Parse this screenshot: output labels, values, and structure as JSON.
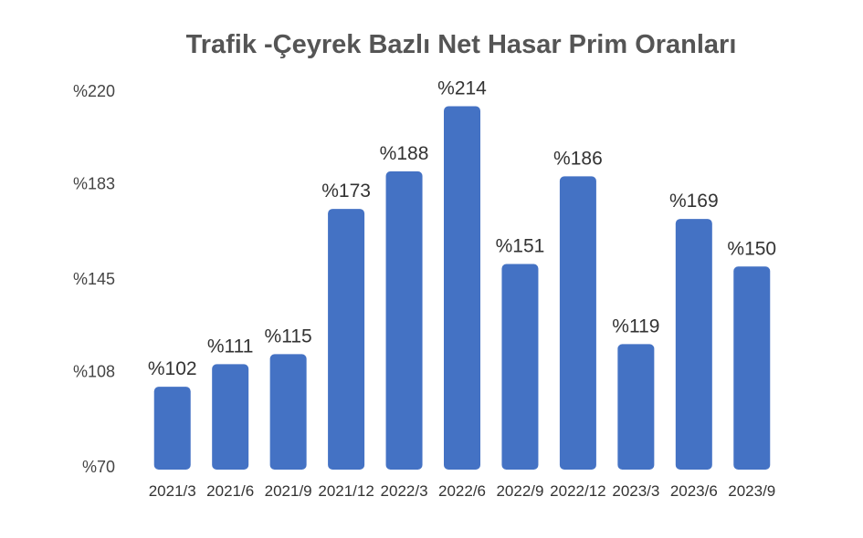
{
  "chart_data": {
    "type": "bar",
    "title": "Trafik -Çeyrek Bazlı Net Hasar Prim Oranları",
    "xlabel": "",
    "ylabel": "",
    "categories": [
      "2021/3",
      "2021/6",
      "2021/9",
      "2021/12",
      "2022/3",
      "2022/6",
      "2022/9",
      "2022/12",
      "2023/3",
      "2023/6",
      "2023/9"
    ],
    "values": [
      102,
      111,
      115,
      173,
      188,
      214,
      151,
      186,
      119,
      169,
      150
    ],
    "data_labels": [
      "%102",
      "%111",
      "%115",
      "%173",
      "%188",
      "%214",
      "%151",
      "%186",
      "%119",
      "%169",
      "%150"
    ],
    "y_ticks": [
      70,
      108,
      145,
      183,
      220
    ],
    "y_tick_labels": [
      "%70",
      "%108",
      "%145",
      "%183",
      "%220"
    ],
    "ylim": [
      70,
      220
    ],
    "grid": false,
    "legend": "none",
    "bar_color": "#4472C4"
  }
}
